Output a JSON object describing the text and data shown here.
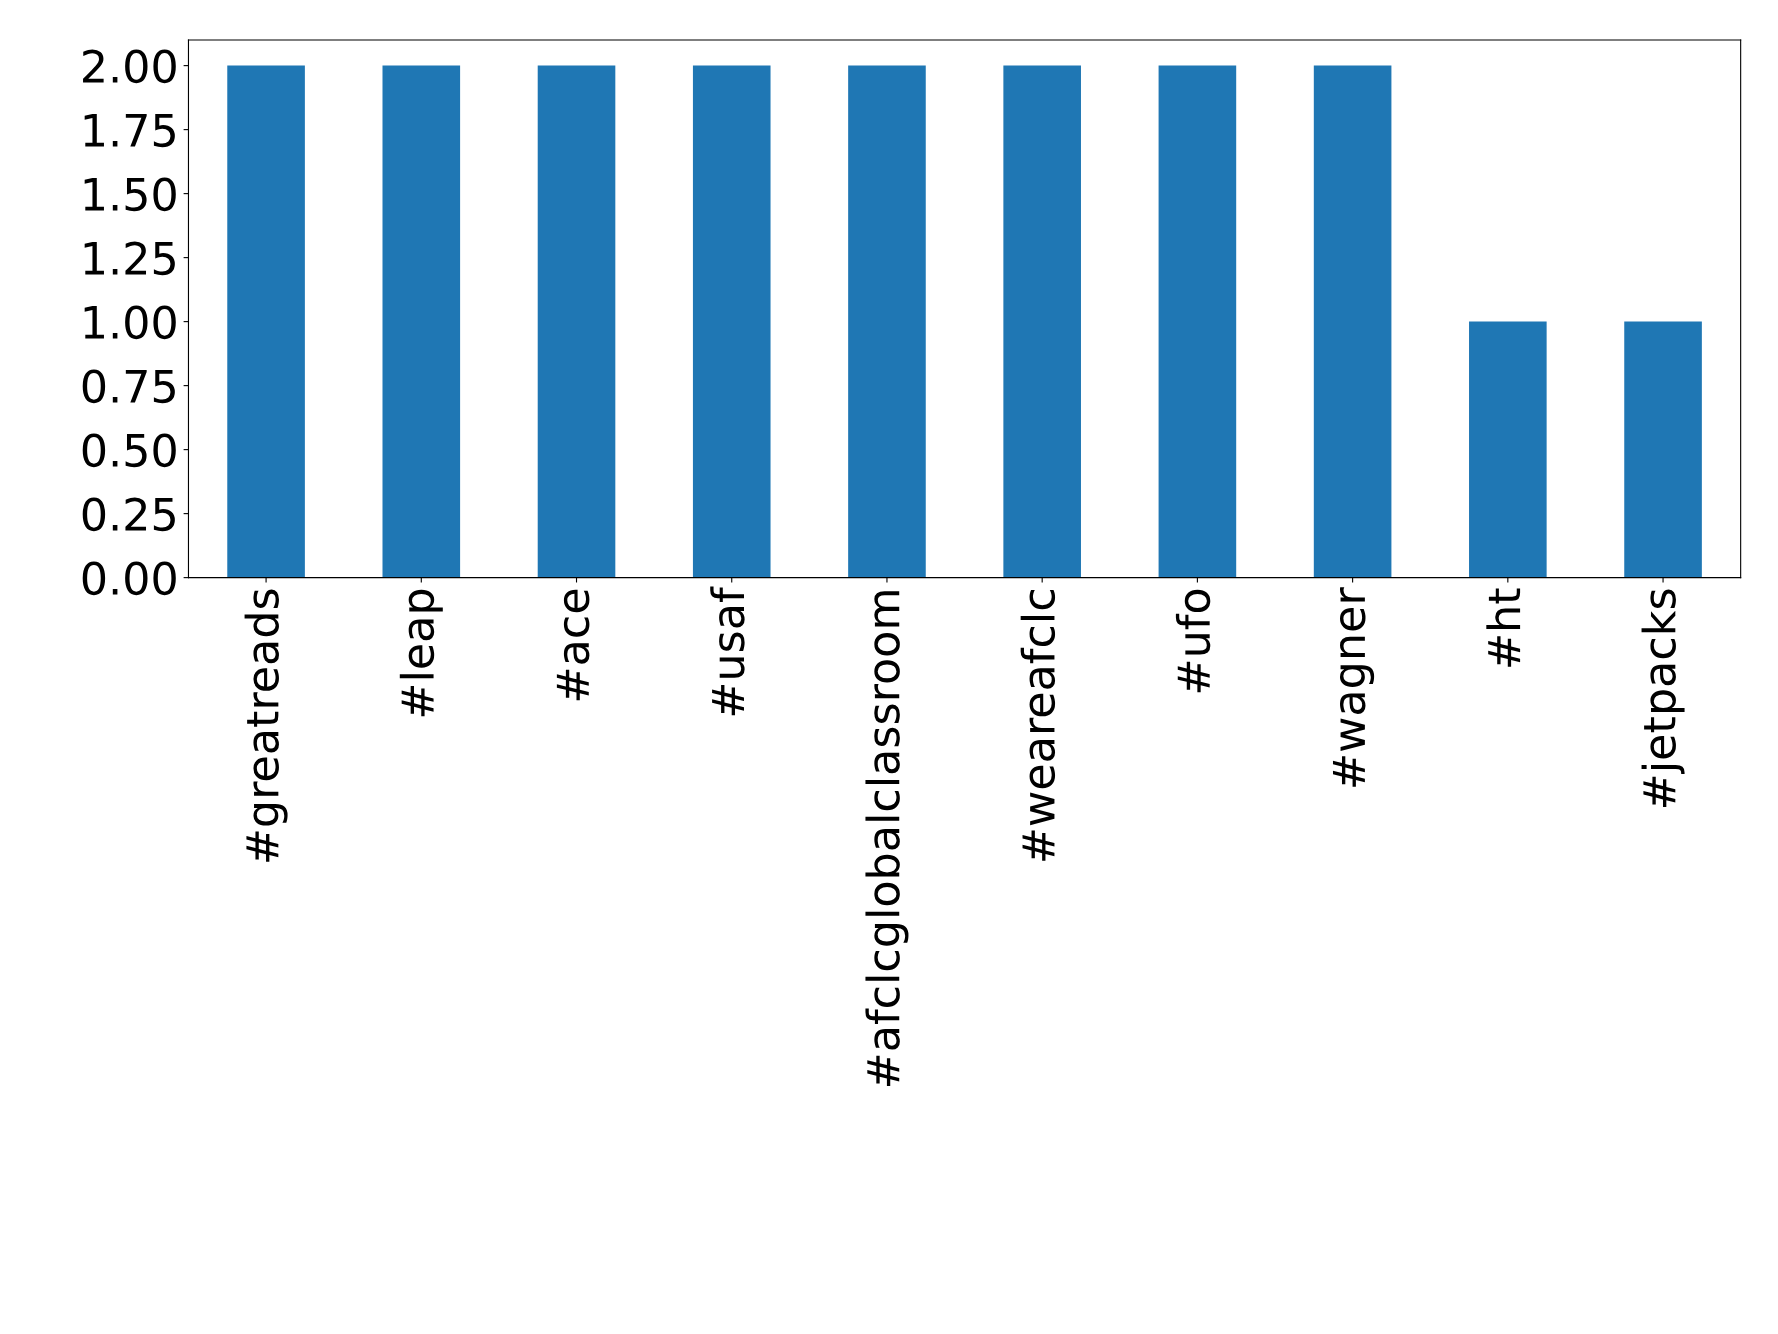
{
  "chart_data": {
    "type": "bar",
    "categories": [
      "#greatreads",
      "#leap",
      "#ace",
      "#usaf",
      "#afclcglobalclassroom",
      "#weareafclc",
      "#ufo",
      "#wagner",
      "#ht",
      "#jetpacks"
    ],
    "values": [
      2,
      2,
      2,
      2,
      2,
      2,
      2,
      2,
      1,
      1
    ],
    "color": "#1f77b4",
    "ylim": [
      0,
      2.1
    ],
    "yticks": [
      {
        "value": 0,
        "label": "0.00"
      },
      {
        "value": 0.25,
        "label": "0.25"
      },
      {
        "value": 0.5,
        "label": "0.50"
      },
      {
        "value": 0.75,
        "label": "0.75"
      },
      {
        "value": 1,
        "label": "1.00"
      },
      {
        "value": 1.25,
        "label": "1.25"
      },
      {
        "value": 1.5,
        "label": "1.50"
      },
      {
        "value": 1.75,
        "label": "1.75"
      },
      {
        "value": 2,
        "label": "2.00"
      }
    ],
    "grid": false,
    "legend": false
  }
}
